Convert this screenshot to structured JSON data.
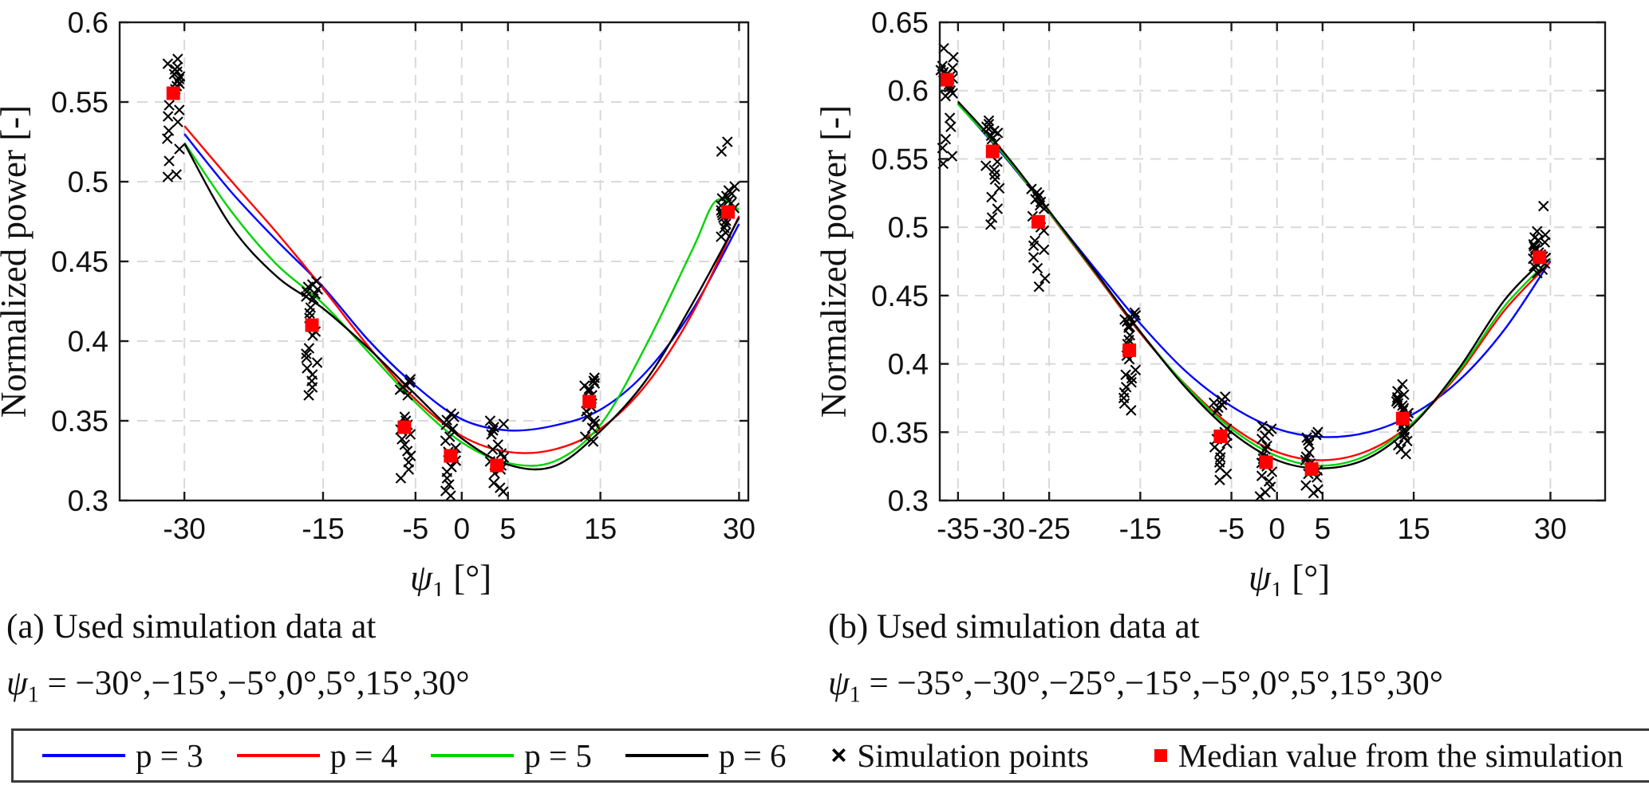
{
  "figure": {
    "background": "#ffffff"
  },
  "captions": {
    "a": {
      "line1": "(a) Used simulation data at",
      "sym": "ψ",
      "sub": "1",
      "values": " = −30°,−15°,−5°,0°,5°,15°,30°"
    },
    "b": {
      "line1": "(b) Used simulation data at",
      "sym": "ψ",
      "sub": "1",
      "values": " = −35°,−30°,−25°,−15°,−5°,0°,5°,15°,30°"
    }
  },
  "legend": {
    "items": [
      {
        "key": "p3",
        "type": "line",
        "color": "#0000ff",
        "label": "p = 3"
      },
      {
        "key": "p4",
        "type": "line",
        "color": "#ff0000",
        "label": "p = 4"
      },
      {
        "key": "p5",
        "type": "line",
        "color": "#00d400",
        "label": "p = 5"
      },
      {
        "key": "p6",
        "type": "line",
        "color": "#000000",
        "label": "p = 6"
      },
      {
        "key": "sim",
        "type": "x-marker",
        "color": "#000000",
        "label": "Simulation points"
      },
      {
        "key": "median",
        "type": "square",
        "color": "#ff0000",
        "label": "Median value from the simulation"
      }
    ]
  },
  "chart_data": [
    {
      "type": "scatter+line",
      "title": "",
      "ylabel": "Normalized power [-]",
      "xlabel": {
        "sym": "ψ",
        "sub": "1",
        "unit": "[°]"
      },
      "xlim": [
        -37,
        31
      ],
      "ylim": [
        0.3,
        0.6
      ],
      "grid": true,
      "xticks": [
        {
          "v": -30,
          "label": "-30"
        },
        {
          "v": -15,
          "label": "-15"
        },
        {
          "v": -5,
          "label": "-5"
        },
        {
          "v": 0,
          "label": "0"
        },
        {
          "v": 5,
          "label": "5"
        },
        {
          "v": 15,
          "label": "15"
        },
        {
          "v": 30,
          "label": "30"
        }
      ],
      "yticks": [
        {
          "v": 0.3,
          "label": "0.3"
        },
        {
          "v": 0.35,
          "label": "0.35"
        },
        {
          "v": 0.4,
          "label": "0.4"
        },
        {
          "v": 0.45,
          "label": "0.45"
        },
        {
          "v": 0.5,
          "label": "0.5"
        },
        {
          "v": 0.55,
          "label": "0.55"
        },
        {
          "v": 0.6,
          "label": "0.6"
        }
      ],
      "curves": [
        {
          "name": "p = 3",
          "color": "#0000ff",
          "x": [
            -30,
            -25,
            -20,
            -15,
            -10,
            -5,
            0,
            5,
            10,
            15,
            20,
            25,
            30
          ],
          "y": [
            0.53,
            0.494,
            0.463,
            0.434,
            0.4,
            0.372,
            0.351,
            0.344,
            0.347,
            0.357,
            0.381,
            0.42,
            0.4735
          ]
        },
        {
          "name": "p = 4",
          "color": "#ff0000",
          "x": [
            -30,
            -25,
            -20,
            -15,
            -10,
            -5,
            0,
            5,
            10,
            15,
            20,
            25,
            30
          ],
          "y": [
            0.535,
            0.501,
            0.468,
            0.433,
            0.396,
            0.3635,
            0.3405,
            0.3305,
            0.332,
            0.345,
            0.373,
            0.418,
            0.4785
          ]
        },
        {
          "name": "p = 5",
          "color": "#00d400",
          "x": [
            -30,
            -25,
            -20,
            -15,
            -10,
            -5,
            0,
            5,
            10,
            15,
            20,
            25,
            27.5,
            30
          ],
          "y": [
            0.5245,
            0.482,
            0.448,
            0.4235,
            0.3925,
            0.3615,
            0.3365,
            0.3235,
            0.3245,
            0.3475,
            0.398,
            0.458,
            0.488,
            0.4825
          ]
        },
        {
          "name": "p = 6",
          "color": "#000000",
          "x": [
            -30,
            -25,
            -20,
            -15,
            -10,
            -5,
            0,
            5,
            10,
            15,
            20,
            25,
            30
          ],
          "y": [
            0.524,
            0.4725,
            0.4405,
            0.4205,
            0.395,
            0.3665,
            0.339,
            0.3225,
            0.3215,
            0.3435,
            0.376,
            0.424,
            0.4775
          ]
        }
      ],
      "marker_color": "#000000",
      "median_color": "#ff0000",
      "cluster_x_offset": -1.2,
      "clusters": [
        {
          "x": -30,
          "median": 0.5555,
          "points": [
            0.577,
            0.574,
            0.572,
            0.5705,
            0.569,
            0.5675,
            0.566,
            0.5645,
            0.563,
            0.5615,
            0.56,
            0.558,
            0.548,
            0.545,
            0.541,
            0.5375,
            0.532,
            0.527,
            0.5205,
            0.513,
            0.5045,
            0.503
          ]
        },
        {
          "x": -15,
          "median": 0.41,
          "points": [
            0.4375,
            0.4355,
            0.434,
            0.4325,
            0.431,
            0.4295,
            0.428,
            0.4265,
            0.421,
            0.4175,
            0.4145,
            0.406,
            0.4035,
            0.3955,
            0.392,
            0.3895,
            0.3865,
            0.383,
            0.379,
            0.375,
            0.371,
            0.366
          ]
        },
        {
          "x": -5,
          "median": 0.346,
          "points": [
            0.376,
            0.374,
            0.3725,
            0.371,
            0.3695,
            0.366,
            0.3525,
            0.35,
            0.3475,
            0.3445,
            0.3415,
            0.3385,
            0.335,
            0.331,
            0.328,
            0.324,
            0.3195,
            0.314
          ]
        },
        {
          "x": 0,
          "median": 0.328,
          "points": [
            0.3545,
            0.3525,
            0.3505,
            0.3475,
            0.345,
            0.34,
            0.3375,
            0.333,
            0.3305,
            0.3275,
            0.325,
            0.321,
            0.318,
            0.314,
            0.31,
            0.306,
            0.303
          ]
        },
        {
          "x": 5,
          "median": 0.322,
          "points": [
            0.35,
            0.348,
            0.346,
            0.344,
            0.3415,
            0.335,
            0.332,
            0.3295,
            0.327,
            0.3245,
            0.322,
            0.3195,
            0.317,
            0.311,
            0.308,
            0.3055
          ]
        },
        {
          "x": 15,
          "median": 0.362,
          "points": [
            0.377,
            0.375,
            0.3735,
            0.372,
            0.37,
            0.3685,
            0.366,
            0.3635,
            0.361,
            0.3585,
            0.356,
            0.3525,
            0.35,
            0.348,
            0.3455,
            0.34,
            0.337
          ]
        },
        {
          "x": 30,
          "median": 0.481,
          "points": [
            0.525,
            0.519,
            0.497,
            0.4945,
            0.4925,
            0.491,
            0.4895,
            0.488,
            0.4865,
            0.485,
            0.4835,
            0.482,
            0.4805,
            0.479,
            0.4775,
            0.4755,
            0.4735,
            0.471,
            0.468,
            0.4655
          ]
        }
      ]
    },
    {
      "type": "scatter+line",
      "title": "",
      "ylabel": "Normalized power [-]",
      "xlabel": {
        "sym": "ψ",
        "sub": "1",
        "unit": "[°]"
      },
      "xlim": [
        -37,
        36
      ],
      "ylim": [
        0.3,
        0.65
      ],
      "grid": true,
      "xticks": [
        {
          "v": -35,
          "label": "-35"
        },
        {
          "v": -30,
          "label": "-30"
        },
        {
          "v": -25,
          "label": "-25"
        },
        {
          "v": -15,
          "label": "-15"
        },
        {
          "v": -5,
          "label": "-5"
        },
        {
          "v": 0,
          "label": "0"
        },
        {
          "v": 5,
          "label": "5"
        },
        {
          "v": 15,
          "label": "15"
        },
        {
          "v": 30,
          "label": "30"
        }
      ],
      "yticks": [
        {
          "v": 0.3,
          "label": "0.3"
        },
        {
          "v": 0.35,
          "label": "0.35"
        },
        {
          "v": 0.4,
          "label": "0.4"
        },
        {
          "v": 0.45,
          "label": "0.45"
        },
        {
          "v": 0.5,
          "label": "0.5"
        },
        {
          "v": 0.55,
          "label": "0.55"
        },
        {
          "v": 0.6,
          "label": "0.6"
        },
        {
          "v": 0.65,
          "label": "0.65"
        }
      ],
      "curves": [
        {
          "name": "p = 3",
          "color": "#0000ff",
          "x": [
            -35,
            -30,
            -25,
            -20,
            -15,
            -10,
            -5,
            0,
            5,
            10,
            15,
            20,
            25,
            30
          ],
          "y": [
            0.5905,
            0.5525,
            0.5115,
            0.47,
            0.4295,
            0.3945,
            0.369,
            0.3525,
            0.3465,
            0.35,
            0.3635,
            0.388,
            0.4255,
            0.4755
          ]
        },
        {
          "name": "p = 4",
          "color": "#ff0000",
          "x": [
            -35,
            -30,
            -25,
            -20,
            -15,
            -10,
            -5,
            0,
            5,
            10,
            15,
            20,
            25,
            30
          ],
          "y": [
            0.591,
            0.5535,
            0.5105,
            0.4665,
            0.4225,
            0.3845,
            0.3545,
            0.3355,
            0.3295,
            0.3365,
            0.3575,
            0.3935,
            0.4395,
            0.4745
          ]
        },
        {
          "name": "p = 5",
          "color": "#00d400",
          "x": [
            -35,
            -30,
            -25,
            -20,
            -15,
            -10,
            -5,
            0,
            5,
            10,
            15,
            20,
            25,
            30
          ],
          "y": [
            0.59,
            0.5535,
            0.511,
            0.4675,
            0.4235,
            0.384,
            0.3525,
            0.3325,
            0.3255,
            0.3335,
            0.3575,
            0.395,
            0.4425,
            0.477
          ]
        },
        {
          "name": "p = 6",
          "color": "#000000",
          "x": [
            -35,
            -30,
            -25,
            -20,
            -15,
            -10,
            -5,
            0,
            5,
            10,
            15,
            20,
            25,
            30
          ],
          "y": [
            0.592,
            0.555,
            0.512,
            0.468,
            0.4235,
            0.3825,
            0.35,
            0.3295,
            0.3235,
            0.331,
            0.356,
            0.397,
            0.447,
            0.481
          ]
        }
      ],
      "marker_color": "#000000",
      "median_color": "#ff0000",
      "cluster_x_offset": -1.2,
      "clusters": [
        {
          "x": -35,
          "median": 0.608,
          "points": [
            0.631,
            0.6245,
            0.618,
            0.6165,
            0.615,
            0.6135,
            0.612,
            0.6105,
            0.609,
            0.6075,
            0.606,
            0.6045,
            0.6025,
            0.6,
            0.598,
            0.596,
            0.58,
            0.5735,
            0.5645,
            0.558,
            0.552,
            0.5465
          ]
        },
        {
          "x": -30,
          "median": 0.5555,
          "points": [
            0.578,
            0.5755,
            0.5735,
            0.572,
            0.5705,
            0.569,
            0.567,
            0.5645,
            0.562,
            0.548,
            0.545,
            0.542,
            0.5385,
            0.535,
            0.5285,
            0.522,
            0.5135,
            0.507,
            0.502
          ]
        },
        {
          "x": -25,
          "median": 0.504,
          "points": [
            0.528,
            0.5255,
            0.5235,
            0.522,
            0.5205,
            0.5185,
            0.516,
            0.5135,
            0.508,
            0.503,
            0.5,
            0.4975,
            0.49,
            0.4865,
            0.4835,
            0.478,
            0.47,
            0.4625,
            0.4565
          ]
        },
        {
          "x": -15,
          "median": 0.41,
          "points": [
            0.4375,
            0.4355,
            0.434,
            0.4325,
            0.431,
            0.4295,
            0.428,
            0.4265,
            0.421,
            0.4175,
            0.4145,
            0.406,
            0.4035,
            0.3955,
            0.392,
            0.3895,
            0.3865,
            0.383,
            0.379,
            0.375,
            0.371,
            0.366
          ]
        },
        {
          "x": -5,
          "median": 0.347,
          "points": [
            0.376,
            0.3735,
            0.3715,
            0.37,
            0.368,
            0.3655,
            0.3525,
            0.35,
            0.3475,
            0.345,
            0.342,
            0.339,
            0.3355,
            0.3315,
            0.328,
            0.324,
            0.3195,
            0.315
          ]
        },
        {
          "x": 0,
          "median": 0.328,
          "points": [
            0.3545,
            0.3525,
            0.3505,
            0.3475,
            0.345,
            0.34,
            0.3375,
            0.333,
            0.3305,
            0.3275,
            0.325,
            0.321,
            0.318,
            0.314,
            0.31,
            0.306,
            0.303
          ]
        },
        {
          "x": 5,
          "median": 0.323,
          "points": [
            0.35,
            0.348,
            0.346,
            0.344,
            0.3415,
            0.335,
            0.332,
            0.3295,
            0.327,
            0.3245,
            0.322,
            0.3195,
            0.317,
            0.311,
            0.308,
            0.3055
          ]
        },
        {
          "x": 15,
          "median": 0.36,
          "points": [
            0.385,
            0.38,
            0.3775,
            0.3755,
            0.374,
            0.3725,
            0.371,
            0.3695,
            0.3675,
            0.366,
            0.364,
            0.3615,
            0.359,
            0.3565,
            0.354,
            0.3515,
            0.349,
            0.3465,
            0.3435,
            0.3405,
            0.3375,
            0.334
          ]
        },
        {
          "x": 30,
          "median": 0.478,
          "points": [
            0.5155,
            0.497,
            0.4945,
            0.4925,
            0.4905,
            0.489,
            0.4875,
            0.486,
            0.4845,
            0.483,
            0.4815,
            0.48,
            0.4785,
            0.477,
            0.4755,
            0.4735,
            0.4715,
            0.469,
            0.4665
          ]
        }
      ]
    }
  ]
}
